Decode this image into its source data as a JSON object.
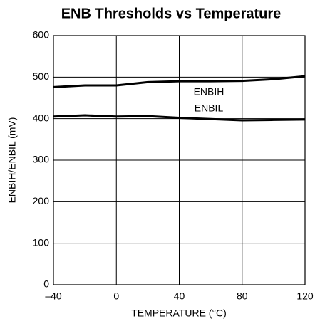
{
  "chart_data": {
    "type": "line",
    "title": "ENB Thresholds vs Temperature",
    "x_label": "TEMPERATURE (°C)",
    "y_label": "ENBIH/ENBIL (mV)",
    "x": [
      -40,
      -20,
      0,
      20,
      40,
      60,
      80,
      100,
      120
    ],
    "series": [
      {
        "name": "ENBIH",
        "color": "#000000",
        "values": [
          476,
          480,
          480,
          488,
          490,
          490,
          491,
          495,
          502
        ]
      },
      {
        "name": "ENBIL",
        "color": "#000000",
        "values": [
          405,
          408,
          405,
          406,
          402,
          399,
          396,
          397,
          398
        ]
      }
    ],
    "xlim": [
      -40,
      120
    ],
    "xticks": [
      {
        "value": -40,
        "label": "–40"
      },
      0,
      40,
      80,
      120
    ],
    "ylim": [
      0,
      600
    ],
    "yticks": [
      0,
      100,
      200,
      300,
      400,
      500,
      600
    ],
    "grid": true
  }
}
